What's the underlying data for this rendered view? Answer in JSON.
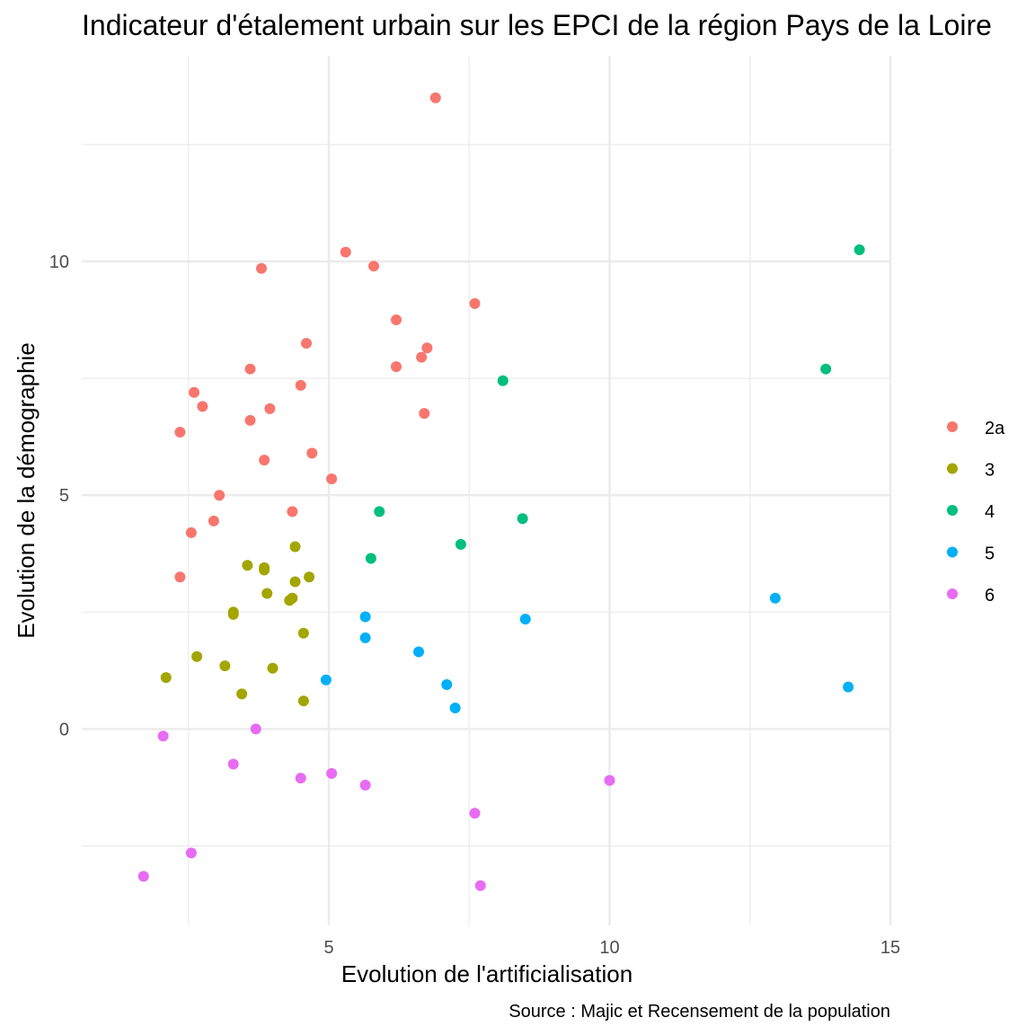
{
  "chart_data": {
    "type": "scatter",
    "title": "Indicateur d'étalement urbain sur les EPCI de la région Pays de la Loire",
    "xlabel": "Evolution de l'artificialisation",
    "ylabel": "Evolution de la démographie",
    "caption": "Source : Majic et Recensement de la population",
    "xlim": [
      0.6,
      15.0
    ],
    "ylim": [
      -4.2,
      14.4
    ],
    "x_ticks": [
      5,
      10,
      15
    ],
    "y_ticks": [
      0,
      5,
      10
    ],
    "grid": true,
    "legend_position": "right",
    "series": [
      {
        "name": "2a",
        "color": "#F8766D",
        "points": [
          [
            6.9,
            13.5
          ],
          [
            5.3,
            10.2
          ],
          [
            3.8,
            9.85
          ],
          [
            5.8,
            9.9
          ],
          [
            7.6,
            9.1
          ],
          [
            6.2,
            8.75
          ],
          [
            4.6,
            8.25
          ],
          [
            6.75,
            8.15
          ],
          [
            6.65,
            7.95
          ],
          [
            6.2,
            7.75
          ],
          [
            3.6,
            7.7
          ],
          [
            4.5,
            7.35
          ],
          [
            2.6,
            7.2
          ],
          [
            2.75,
            6.9
          ],
          [
            3.95,
            6.85
          ],
          [
            6.7,
            6.75
          ],
          [
            3.6,
            6.6
          ],
          [
            2.35,
            6.35
          ],
          [
            4.7,
            5.9
          ],
          [
            3.85,
            5.75
          ],
          [
            5.05,
            5.35
          ],
          [
            3.05,
            5.0
          ],
          [
            2.95,
            4.45
          ],
          [
            4.35,
            4.65
          ],
          [
            2.55,
            4.2
          ],
          [
            2.35,
            3.25
          ]
        ]
      },
      {
        "name": "3",
        "color": "#A3A500",
        "points": [
          [
            4.4,
            3.9
          ],
          [
            3.55,
            3.5
          ],
          [
            3.85,
            3.45
          ],
          [
            3.85,
            3.4
          ],
          [
            4.4,
            3.15
          ],
          [
            4.65,
            3.25
          ],
          [
            3.9,
            2.9
          ],
          [
            4.35,
            2.8
          ],
          [
            4.3,
            2.75
          ],
          [
            3.3,
            2.5
          ],
          [
            3.3,
            2.45
          ],
          [
            4.55,
            2.05
          ],
          [
            2.65,
            1.55
          ],
          [
            3.15,
            1.35
          ],
          [
            4.0,
            1.3
          ],
          [
            2.1,
            1.1
          ],
          [
            3.45,
            0.75
          ],
          [
            4.55,
            0.6
          ]
        ]
      },
      {
        "name": "4",
        "color": "#00BF7D",
        "points": [
          [
            14.45,
            10.25
          ],
          [
            13.85,
            7.7
          ],
          [
            8.1,
            7.45
          ],
          [
            5.9,
            4.65
          ],
          [
            8.45,
            4.5
          ],
          [
            7.35,
            3.95
          ],
          [
            5.75,
            3.65
          ]
        ]
      },
      {
        "name": "5",
        "color": "#00B0F6",
        "points": [
          [
            12.95,
            2.8
          ],
          [
            5.65,
            2.4
          ],
          [
            8.5,
            2.35
          ],
          [
            5.65,
            1.95
          ],
          [
            6.6,
            1.65
          ],
          [
            4.95,
            1.05
          ],
          [
            7.1,
            0.95
          ],
          [
            14.25,
            0.9
          ],
          [
            7.25,
            0.45
          ]
        ]
      },
      {
        "name": "6",
        "color": "#E76BF3",
        "points": [
          [
            3.7,
            0.0
          ],
          [
            2.05,
            -0.15
          ],
          [
            3.3,
            -0.75
          ],
          [
            5.05,
            -0.95
          ],
          [
            4.5,
            -1.05
          ],
          [
            10.0,
            -1.1
          ],
          [
            5.65,
            -1.2
          ],
          [
            7.6,
            -1.8
          ],
          [
            2.55,
            -2.65
          ],
          [
            1.7,
            -3.15
          ],
          [
            7.7,
            -3.35
          ]
        ]
      }
    ]
  }
}
